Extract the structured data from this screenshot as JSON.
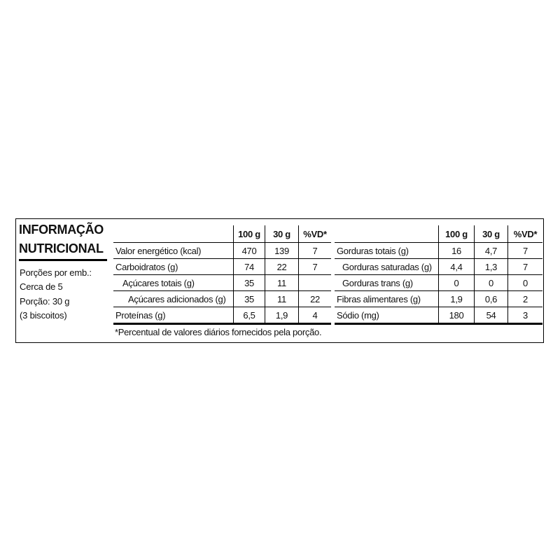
{
  "left_panel": {
    "title": [
      "INFORMAÇÃO",
      "NUTRICIONAL"
    ],
    "lines": [
      "Porções por emb.:",
      "Cerca de 5",
      "Porção: 30 g",
      "(3 biscoitos)"
    ]
  },
  "tables": [
    {
      "headers": [
        "100 g",
        "30 g",
        "%VD*"
      ],
      "rows": [
        [
          "Valor energético (kcal)",
          "470",
          "139",
          "7"
        ],
        [
          "Carboidratos (g)",
          "74",
          "22",
          "7"
        ],
        [
          "Açúcares totais (g)",
          "35",
          "11",
          null
        ],
        [
          "Açúcares adicionados (g)",
          "35",
          "11",
          "22"
        ],
        [
          "Proteínas (g)",
          "6,5",
          "1,9",
          "4"
        ]
      ]
    },
    {
      "headers": [
        "100 g",
        "30 g",
        "%VD*"
      ],
      "rows": [
        [
          "Gorduras totais (g)",
          "16",
          "4,7",
          "7"
        ],
        [
          "Gorduras saturadas (g)",
          "4,4",
          "1,3",
          "7"
        ],
        [
          "Gorduras trans (g)",
          "0",
          "0",
          "0"
        ],
        [
          "Fibras alimentares (g)",
          "1,9",
          "0,6",
          "2"
        ],
        [
          "Sódio (mg)",
          "180",
          "54",
          "3"
        ]
      ]
    }
  ],
  "footnote": "*Percentual de valores diários fornecidos pela porção."
}
